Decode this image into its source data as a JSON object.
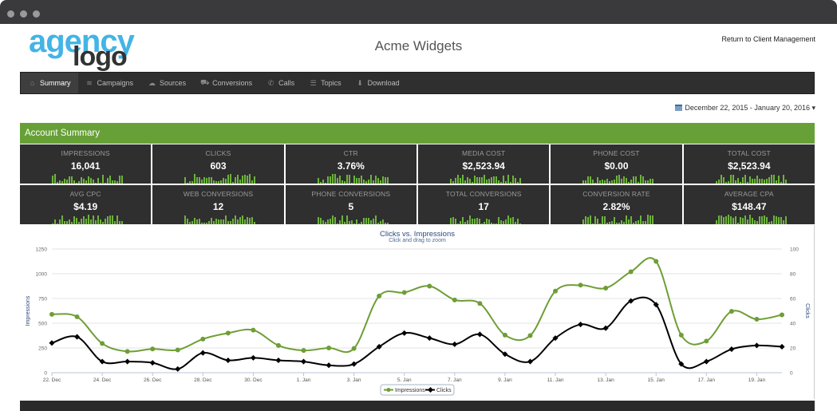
{
  "header": {
    "logo_top": "agency",
    "logo_bottom": "logo",
    "title": "Acme Widgets",
    "return_link": "Return to Client Management"
  },
  "nav": {
    "items": [
      {
        "label": "Summary",
        "icon": "home-icon",
        "glyph": "⌂"
      },
      {
        "label": "Campaigns",
        "icon": "signal-icon",
        "glyph": "≋"
      },
      {
        "label": "Sources",
        "icon": "cloud-icon",
        "glyph": "☁"
      },
      {
        "label": "Conversions",
        "icon": "cart-icon",
        "glyph": "⛟"
      },
      {
        "label": "Calls",
        "icon": "phone-icon",
        "glyph": "✆"
      },
      {
        "label": "Topics",
        "icon": "list-icon",
        "glyph": "☰"
      },
      {
        "label": "Download",
        "icon": "download-icon",
        "glyph": "⬇"
      }
    ]
  },
  "date_range": "December 22, 2015 - January 20, 2016 ▾",
  "summary": {
    "title": "Account Summary",
    "tiles": [
      {
        "label": "IMPRESSIONS",
        "value": "16,041"
      },
      {
        "label": "CLICKS",
        "value": "603"
      },
      {
        "label": "CTR",
        "value": "3.76%"
      },
      {
        "label": "MEDIA COST",
        "value": "$2,523.94"
      },
      {
        "label": "PHONE COST",
        "value": "$0.00"
      },
      {
        "label": "TOTAL COST",
        "value": "$2,523.94"
      },
      {
        "label": "AVG CPC",
        "value": "$4.19"
      },
      {
        "label": "WEB CONVERSIONS",
        "value": "12"
      },
      {
        "label": "PHONE CONVERSIONS",
        "value": "5"
      },
      {
        "label": "TOTAL CONVERSIONS",
        "value": "17"
      },
      {
        "label": "CONVERSION RATE",
        "value": "2.82%"
      },
      {
        "label": "AVERAGE CPA",
        "value": "$148.47"
      }
    ]
  },
  "colors": {
    "accent_green": "#67a037",
    "impressions": "#6e9e35",
    "clicks": "#000000",
    "tile_bg": "#2f2f2f"
  },
  "chart_data": {
    "type": "line",
    "title": "Clicks vs. Impressions",
    "subtitle": "Click and drag to zoom",
    "ylabel_left": "Impressions",
    "ylabel_right": "Clicks",
    "ylim_left": [
      0,
      1250
    ],
    "ylim_right": [
      0,
      100
    ],
    "yticks_left": [
      "0",
      "250",
      "500",
      "750",
      "1000",
      "1250"
    ],
    "yticks_right": [
      "0",
      "20",
      "40",
      "60",
      "80",
      "100"
    ],
    "xticks": [
      "22. Dec",
      "24. Dec",
      "26. Dec",
      "28. Dec",
      "30. Dec",
      "1. Jan",
      "3. Jan",
      "5. Jan",
      "7. Jan",
      "9. Jan",
      "11. Jan",
      "13. Jan",
      "15. Jan",
      "17. Jan",
      "19. Jan"
    ],
    "legend": "bottom-center",
    "series": [
      {
        "name": "Impressions",
        "axis": "left",
        "values": [
          590,
          565,
          295,
          215,
          240,
          230,
          340,
          400,
          430,
          275,
          225,
          250,
          245,
          775,
          810,
          875,
          735,
          700,
          380,
          375,
          825,
          885,
          855,
          1020,
          1125,
          380,
          320,
          620,
          540,
          585
        ]
      },
      {
        "name": "Clicks",
        "axis": "right",
        "values": [
          24,
          29,
          9,
          9,
          8,
          3,
          16,
          10,
          12,
          10,
          9,
          6,
          7,
          21,
          32,
          28,
          23,
          31,
          15,
          9,
          28,
          39,
          36,
          58,
          55,
          7,
          9,
          19,
          22,
          21
        ]
      }
    ]
  }
}
